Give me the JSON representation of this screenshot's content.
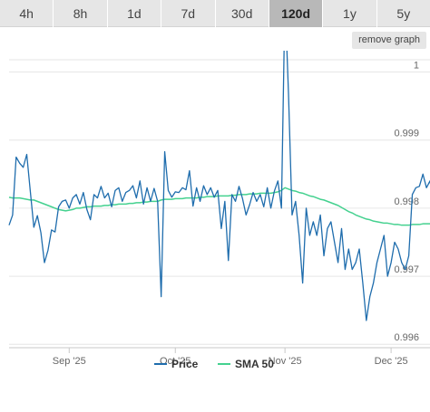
{
  "range_tabs": [
    {
      "label": "4h"
    },
    {
      "label": "8h"
    },
    {
      "label": "1d"
    },
    {
      "label": "7d"
    },
    {
      "label": "30d"
    },
    {
      "label": "120d",
      "active": true
    },
    {
      "label": "1y"
    },
    {
      "label": "5y"
    }
  ],
  "remove_graph_label": "remove graph",
  "chart_data": {
    "type": "line",
    "ylim": [
      0.99595,
      1.00018
    ],
    "y_ticks": [
      0.996,
      0.997,
      0.998,
      0.999,
      1
    ],
    "y_tick_labels": [
      "0.996",
      "0.997",
      "0.998",
      "0.999",
      "1"
    ],
    "x_ticks": [
      {
        "label": "Sep '25",
        "index": 17
      },
      {
        "label": "Oct '25",
        "index": 47
      },
      {
        "label": "Nov '25",
        "index": 78
      },
      {
        "label": "Dec '25",
        "index": 108
      }
    ],
    "x_count": 120,
    "grid": true,
    "legend_position": "bottom",
    "colors": {
      "price": "#1f6dad",
      "sma": "#44d18f",
      "grid": "#e6e6e6"
    },
    "series": [
      {
        "name": "Price",
        "values": [
          0.99775,
          0.9979,
          0.99875,
          0.99866,
          0.9986,
          0.99879,
          0.99825,
          0.99772,
          0.99789,
          0.99764,
          0.9972,
          0.99738,
          0.99768,
          0.99765,
          0.99802,
          0.9981,
          0.99812,
          0.998,
          0.99815,
          0.9982,
          0.99806,
          0.99823,
          0.99798,
          0.99783,
          0.9982,
          0.99815,
          0.99832,
          0.99815,
          0.99822,
          0.99802,
          0.99826,
          0.9983,
          0.9981,
          0.99823,
          0.99826,
          0.99833,
          0.99815,
          0.9984,
          0.99806,
          0.9983,
          0.9981,
          0.99829,
          0.9981,
          0.9967,
          0.99883,
          0.99826,
          0.99816,
          0.99824,
          0.99823,
          0.9983,
          0.99827,
          0.99855,
          0.99803,
          0.9983,
          0.9981,
          0.99833,
          0.9982,
          0.9983,
          0.99816,
          0.99826,
          0.9977,
          0.9981,
          0.99723,
          0.9982,
          0.9981,
          0.99832,
          0.99814,
          0.9979,
          0.99805,
          0.99823,
          0.9981,
          0.9982,
          0.99802,
          0.9983,
          0.998,
          0.99825,
          0.9984,
          0.998,
          1.0011,
          0.99968,
          0.9979,
          0.9981,
          0.9976,
          0.9969,
          0.998,
          0.9976,
          0.9978,
          0.9976,
          0.9979,
          0.9973,
          0.9977,
          0.9978,
          0.9975,
          0.9972,
          0.9977,
          0.9971,
          0.9974,
          0.9971,
          0.9972,
          0.9974,
          0.9969,
          0.99635,
          0.9967,
          0.9969,
          0.9972,
          0.9974,
          0.9976,
          0.997,
          0.9972,
          0.9975,
          0.9974,
          0.9972,
          0.9971,
          0.9973,
          0.9982,
          0.9983,
          0.99832,
          0.9985,
          0.9983,
          0.9984,
          0.9981
        ]
      },
      {
        "name": "SMA 50",
        "values": [
          0.99816,
          0.99815,
          0.99815,
          0.99815,
          0.99814,
          0.99813,
          0.99812,
          0.99812,
          0.9981,
          0.99808,
          0.99806,
          0.99804,
          0.99802,
          0.998,
          0.99798,
          0.99797,
          0.99796,
          0.99797,
          0.99798,
          0.998,
          0.998,
          0.99801,
          0.99802,
          0.99802,
          0.99803,
          0.99803,
          0.99803,
          0.99804,
          0.99804,
          0.99805,
          0.99805,
          0.99806,
          0.99806,
          0.99806,
          0.99807,
          0.99807,
          0.99808,
          0.99808,
          0.99809,
          0.99809,
          0.9981,
          0.9981,
          0.9981,
          0.99812,
          0.99813,
          0.99813,
          0.99813,
          0.99814,
          0.99814,
          0.99814,
          0.99815,
          0.99815,
          0.99815,
          0.99815,
          0.99816,
          0.99816,
          0.99817,
          0.99817,
          0.99817,
          0.99818,
          0.99818,
          0.99818,
          0.99818,
          0.99819,
          0.99819,
          0.9982,
          0.9982,
          0.9982,
          0.99821,
          0.99821,
          0.99821,
          0.99822,
          0.99822,
          0.99822,
          0.99822,
          0.99823,
          0.99824,
          0.99826,
          0.9983,
          0.99828,
          0.99826,
          0.99825,
          0.99823,
          0.99822,
          0.9982,
          0.99818,
          0.99817,
          0.99815,
          0.99813,
          0.99812,
          0.9981,
          0.99808,
          0.99806,
          0.99804,
          0.99801,
          0.99798,
          0.99795,
          0.99793,
          0.9979,
          0.99788,
          0.99786,
          0.99784,
          0.99783,
          0.99781,
          0.9978,
          0.99779,
          0.99778,
          0.99778,
          0.99777,
          0.99776,
          0.99776,
          0.99775,
          0.99775,
          0.99775,
          0.99776,
          0.99776,
          0.99776,
          0.99777,
          0.99777,
          0.99777
        ]
      }
    ]
  }
}
